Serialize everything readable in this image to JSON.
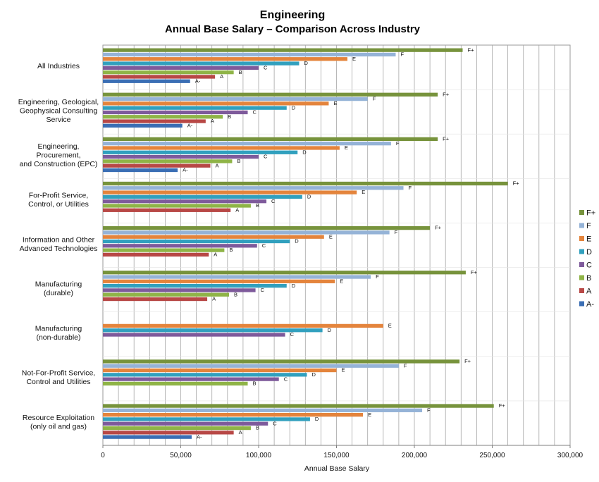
{
  "chart_data": {
    "type": "bar",
    "orientation": "horizontal",
    "title": "Engineering",
    "subtitle": "Annual Base Salary – Comparison Across Industry",
    "xlabel": "Annual Base Salary",
    "ylabel": "",
    "xlim": [
      0,
      300000
    ],
    "xticks": [
      0,
      50000,
      100000,
      150000,
      200000,
      250000,
      300000
    ],
    "xtick_labels": [
      "0",
      "50,000",
      "100,000",
      "150,000",
      "200,000",
      "250,000",
      "300,000"
    ],
    "grid": "vertical lines every 10,000",
    "legend_position": "right",
    "categories": [
      "All Industries",
      "Engineering, Geological,\nGeophysical Consulting\nService",
      "Engineering,\nProcurement,\nand Construction (EPC)",
      "For-Profit Service,\nControl, or Utilities",
      "Information and Other\nAdvanced Technologies",
      "Manufacturing\n(durable)",
      "Manufacturing\n(non-durable)",
      "Not-For-Profit Service,\nControl and Utilities",
      "Resource Exploitation\n(only oil and gas)"
    ],
    "series": [
      {
        "name": "F+",
        "color": "#77933C",
        "values": [
          231000,
          215000,
          215000,
          260000,
          210000,
          233000,
          null,
          229000,
          251000
        ]
      },
      {
        "name": "F",
        "color": "#95B3D7",
        "values": [
          188000,
          170000,
          185000,
          193000,
          184000,
          172000,
          null,
          190000,
          205000
        ]
      },
      {
        "name": "E",
        "color": "#E4843C",
        "values": [
          157000,
          145000,
          152000,
          163000,
          142000,
          149000,
          180000,
          150000,
          167000
        ]
      },
      {
        "name": "D",
        "color": "#31A0BE",
        "values": [
          126000,
          118000,
          125000,
          128000,
          120000,
          118000,
          141000,
          131000,
          133000
        ]
      },
      {
        "name": "C",
        "color": "#7E5A9B",
        "values": [
          100000,
          93000,
          100000,
          105000,
          99000,
          98000,
          117000,
          113000,
          106000
        ]
      },
      {
        "name": "B",
        "color": "#8FB447",
        "values": [
          84000,
          77000,
          83000,
          95000,
          78000,
          81000,
          null,
          93000,
          95000
        ]
      },
      {
        "name": "A",
        "color": "#B84846",
        "values": [
          72000,
          66000,
          69000,
          82000,
          68000,
          67000,
          null,
          null,
          84000
        ]
      },
      {
        "name": "A-",
        "color": "#3A6EB4",
        "values": [
          56000,
          51000,
          48000,
          null,
          null,
          null,
          null,
          null,
          57000
        ]
      }
    ]
  }
}
